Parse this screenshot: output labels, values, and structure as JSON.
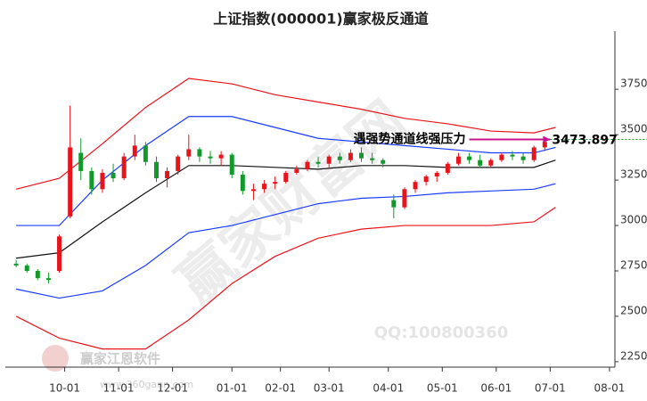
{
  "chart_data": {
    "type": "candlestick",
    "title": "上证指数(000001)赢家极反通道",
    "x": [
      0,
      2,
      4,
      6,
      8,
      10,
      12,
      14,
      16,
      18,
      20,
      22,
      24,
      26,
      28,
      30,
      32,
      34,
      36,
      38,
      40,
      42,
      44,
      46,
      48,
      50,
      52,
      54,
      56,
      58,
      60,
      62,
      64,
      66,
      68,
      70,
      72,
      74,
      76,
      78,
      80,
      82,
      84,
      86,
      88,
      90,
      92,
      94,
      96,
      98
    ],
    "open": [
      2790,
      2780,
      2750,
      2710,
      2750,
      3050,
      3400,
      3300,
      3200,
      3290,
      3260,
      3380,
      3440,
      3350,
      3260,
      3300,
      3380,
      3420,
      3380,
      3370,
      3390,
      3280,
      3190,
      3200,
      3230,
      3240,
      3290,
      3310,
      3350,
      3340,
      3380,
      3360,
      3400,
      3370,
      3360,
      3140,
      3100,
      3200,
      3240,
      3270,
      3290,
      3340,
      3380,
      3360,
      3330,
      3360,
      3390,
      3380,
      3360,
      3430
    ],
    "high": [
      2810,
      2790,
      2760,
      2740,
      2950,
      3660,
      3480,
      3320,
      3310,
      3340,
      3400,
      3500,
      3460,
      3380,
      3320,
      3390,
      3500,
      3430,
      3410,
      3410,
      3400,
      3300,
      3230,
      3250,
      3270,
      3300,
      3330,
      3360,
      3380,
      3390,
      3400,
      3420,
      3430,
      3400,
      3370,
      3170,
      3210,
      3250,
      3280,
      3300,
      3350,
      3400,
      3400,
      3390,
      3370,
      3400,
      3410,
      3400,
      3440,
      3480
    ],
    "low": [
      2770,
      2740,
      2700,
      2680,
      2740,
      3040,
      3250,
      3170,
      3180,
      3240,
      3250,
      3360,
      3330,
      3240,
      3210,
      3280,
      3360,
      3350,
      3340,
      3330,
      3260,
      3170,
      3140,
      3180,
      3200,
      3230,
      3280,
      3300,
      3320,
      3320,
      3340,
      3350,
      3350,
      3340,
      3320,
      3040,
      3090,
      3180,
      3220,
      3240,
      3280,
      3330,
      3340,
      3320,
      3320,
      3350,
      3360,
      3340,
      3350,
      3410
    ],
    "close": [
      2780,
      2750,
      2710,
      2700,
      2940,
      3430,
      3300,
      3200,
      3290,
      3260,
      3380,
      3440,
      3350,
      3260,
      3300,
      3380,
      3420,
      3380,
      3370,
      3390,
      3280,
      3190,
      3200,
      3230,
      3240,
      3290,
      3310,
      3350,
      3340,
      3380,
      3360,
      3400,
      3370,
      3360,
      3340,
      3100,
      3200,
      3240,
      3270,
      3290,
      3340,
      3380,
      3360,
      3330,
      3360,
      3390,
      3380,
      3360,
      3430,
      3460
    ],
    "up_color": "#e8141c",
    "down_color": "#119a2b",
    "line_x": [
      0,
      8,
      16,
      24,
      32,
      40,
      48,
      56,
      64,
      72,
      80,
      88,
      96,
      100
    ],
    "lines": [
      {
        "color": "#e8141c",
        "values": [
          3200,
          3260,
          3450,
          3650,
          3810,
          3780,
          3720,
          3680,
          3640,
          3590,
          3560,
          3520,
          3510,
          3540
        ]
      },
      {
        "color": "#1a3cff",
        "values": [
          3000,
          3000,
          3250,
          3440,
          3600,
          3600,
          3540,
          3480,
          3460,
          3440,
          3420,
          3400,
          3400,
          3430
        ]
      },
      {
        "color": "#111111",
        "values": [
          2820,
          2850,
          3020,
          3180,
          3330,
          3330,
          3320,
          3310,
          3330,
          3330,
          3320,
          3320,
          3320,
          3360
        ]
      },
      {
        "color": "#1a3cff",
        "values": [
          2650,
          2600,
          2640,
          2780,
          2960,
          3000,
          3060,
          3120,
          3150,
          3160,
          3180,
          3190,
          3200,
          3230
        ]
      },
      {
        "color": "#e8141c",
        "values": [
          2500,
          2380,
          2320,
          2320,
          2480,
          2680,
          2830,
          2930,
          2980,
          3000,
          3000,
          3000,
          3020,
          3100
        ]
      }
    ],
    "resistance": {
      "label": "遇强势通道线强压力",
      "value": 3473.897,
      "value_label": "3473.897",
      "x": [
        84,
        99
      ],
      "color": "#c8148c",
      "level_color": "#119a2b"
    },
    "xlim": [
      -2,
      111
    ],
    "ylim": [
      2220,
      4070
    ],
    "xticks": [
      {
        "value": 9,
        "label": "10-01"
      },
      {
        "value": 19,
        "label": "11-01"
      },
      {
        "value": 29,
        "label": "12-01"
      },
      {
        "value": 40,
        "label": "01-01"
      },
      {
        "value": 49,
        "label": "02-01"
      },
      {
        "value": 58,
        "label": "03-01"
      },
      {
        "value": 69,
        "label": "04-01"
      },
      {
        "value": 79,
        "label": "05-01"
      },
      {
        "value": 89,
        "label": "06-01"
      },
      {
        "value": 99,
        "label": "07-01"
      },
      {
        "value": 110,
        "label": "08-01"
      }
    ],
    "yticks": [
      2250,
      2500,
      2750,
      3000,
      3250,
      3500,
      3750
    ],
    "watermarks": [
      "赢家财富网",
      "QQ:100800360",
      "赢家江恩软件",
      "www.360gann.com"
    ]
  }
}
